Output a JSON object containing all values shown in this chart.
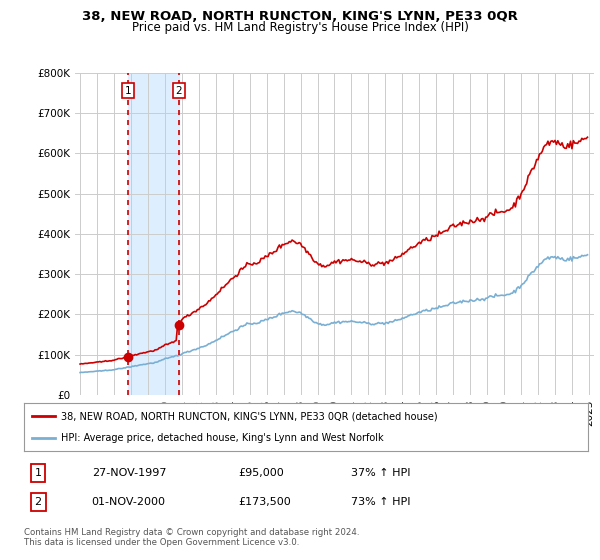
{
  "title": "38, NEW ROAD, NORTH RUNCTON, KING'S LYNN, PE33 0QR",
  "subtitle": "Price paid vs. HM Land Registry's House Price Index (HPI)",
  "legend_label_red": "38, NEW ROAD, NORTH RUNCTON, KING'S LYNN, PE33 0QR (detached house)",
  "legend_label_blue": "HPI: Average price, detached house, King's Lynn and West Norfolk",
  "transactions": [
    {
      "num": 1,
      "date_label": "27-NOV-1997",
      "price_label": "£95,000",
      "hpi_label": "37% ↑ HPI",
      "year": 1997.833,
      "price": 95000
    },
    {
      "num": 2,
      "date_label": "01-NOV-2000",
      "price_label": "£173,500",
      "hpi_label": "73% ↑ HPI",
      "year": 2000.833,
      "price": 173500
    }
  ],
  "footer": "Contains HM Land Registry data © Crown copyright and database right 2024.\nThis data is licensed under the Open Government Licence v3.0.",
  "ylim": [
    0,
    800000
  ],
  "yticks": [
    0,
    100000,
    200000,
    300000,
    400000,
    500000,
    600000,
    700000,
    800000
  ],
  "xlim": [
    1994.7,
    2025.3
  ],
  "red_color": "#cc0000",
  "blue_color": "#7aafd4",
  "shade_color": "#ddeeff",
  "background_color": "#ffffff",
  "plot_bg_color": "#ffffff",
  "grid_color": "#cccccc"
}
